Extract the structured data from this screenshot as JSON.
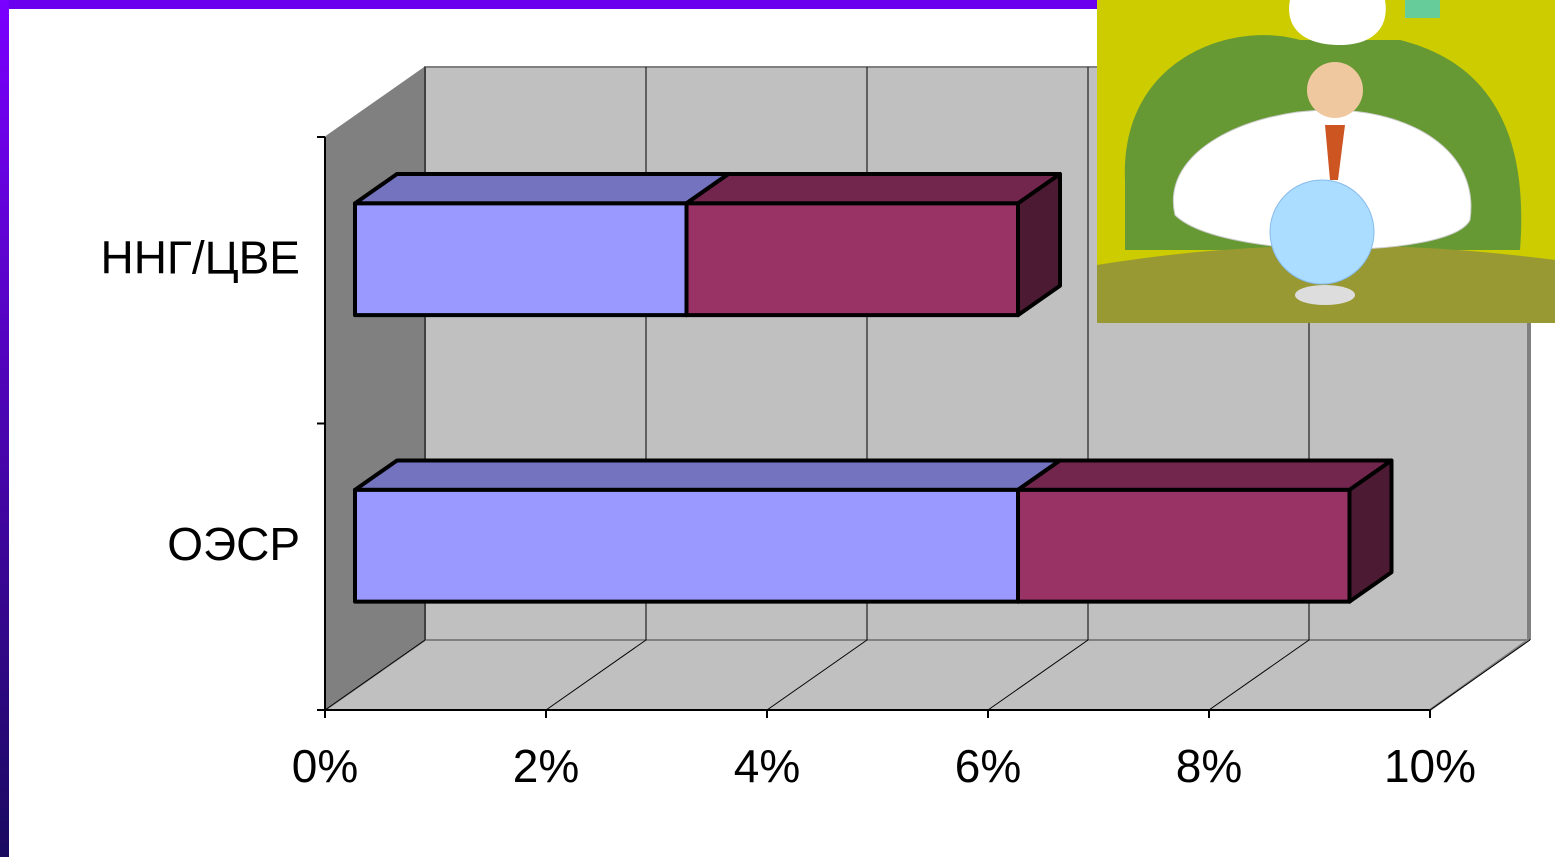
{
  "chart_data": {
    "type": "bar3d_stacked_horizontal",
    "categories": [
      "ОЭСР",
      "ННГ/ЦВЕ"
    ],
    "series": [
      {
        "color": "#9999ff",
        "values": [
          6,
          3
        ]
      },
      {
        "color": "#993366",
        "values": [
          3,
          3
        ]
      }
    ],
    "xlim": [
      0,
      10
    ],
    "xticks": [
      {
        "value": 0,
        "label": "0%"
      },
      {
        "value": 2,
        "label": "2%"
      },
      {
        "value": 4,
        "label": "4%"
      },
      {
        "value": 6,
        "label": "6%"
      },
      {
        "value": 8,
        "label": "8%"
      },
      {
        "value": 10,
        "label": "10%"
      }
    ],
    "grid": true
  }
}
